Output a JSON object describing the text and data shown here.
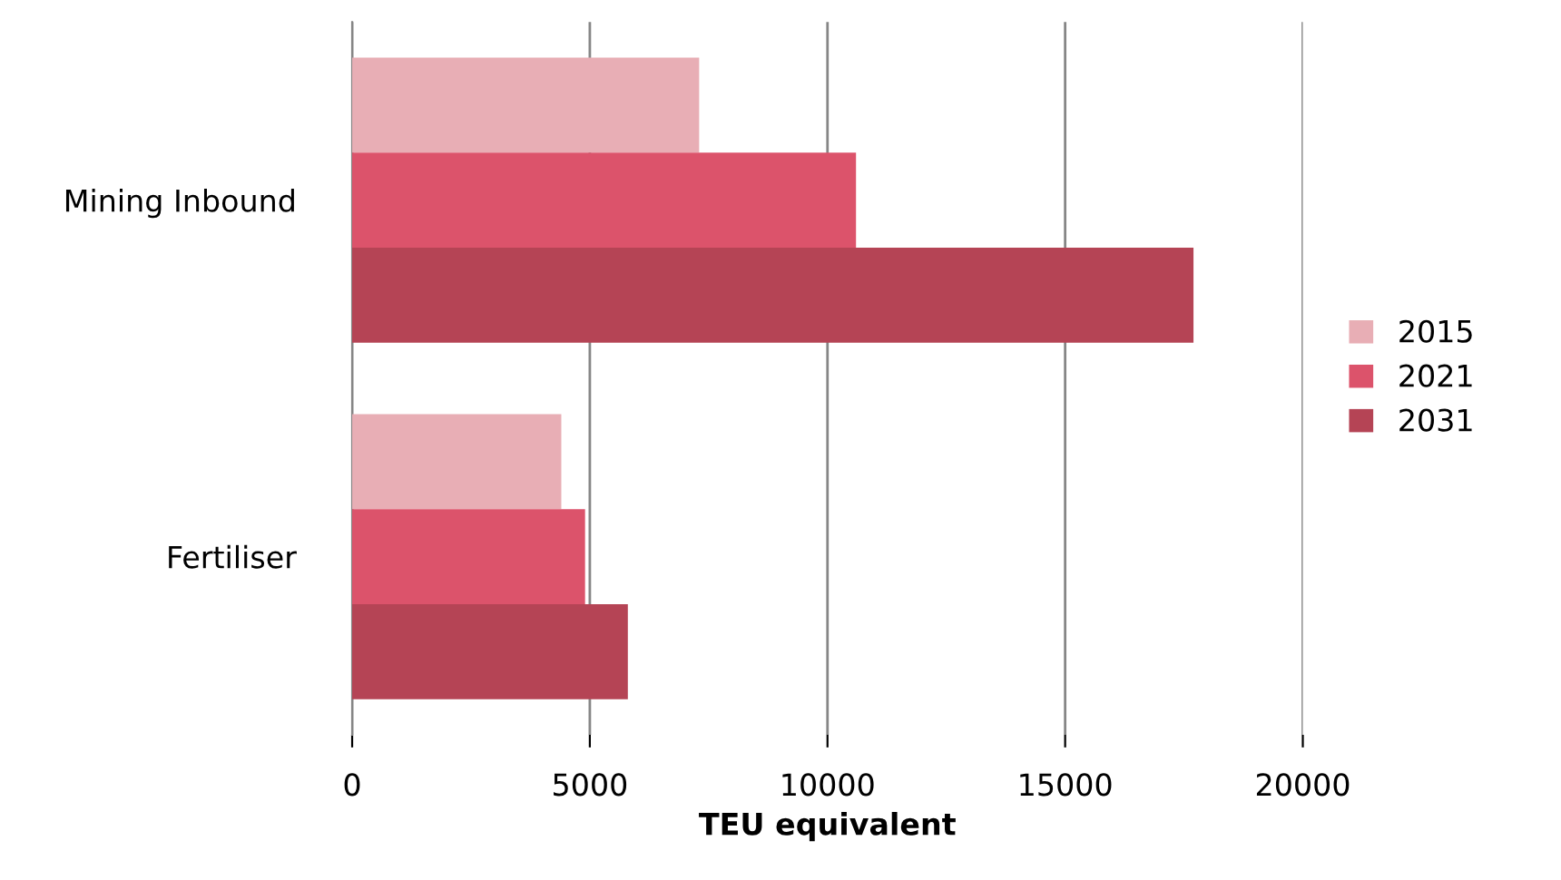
{
  "chart_data": {
    "type": "bar",
    "orientation": "horizontal",
    "xlabel": "TEU equivalent",
    "categories": [
      "Mining Inbound",
      "Fertiliser"
    ],
    "series": [
      {
        "name": "2015",
        "color": "#e8aeb5",
        "values": [
          7300,
          4400
        ]
      },
      {
        "name": "2021",
        "color": "#dc536b",
        "values": [
          10600,
          4900
        ]
      },
      {
        "name": "2031",
        "color": "#b54455",
        "values": [
          17700,
          5800
        ]
      }
    ],
    "xlim": [
      0,
      20000
    ],
    "xticks": [
      0,
      5000,
      10000,
      15000,
      20000
    ],
    "grid": "x",
    "legend": "right"
  }
}
